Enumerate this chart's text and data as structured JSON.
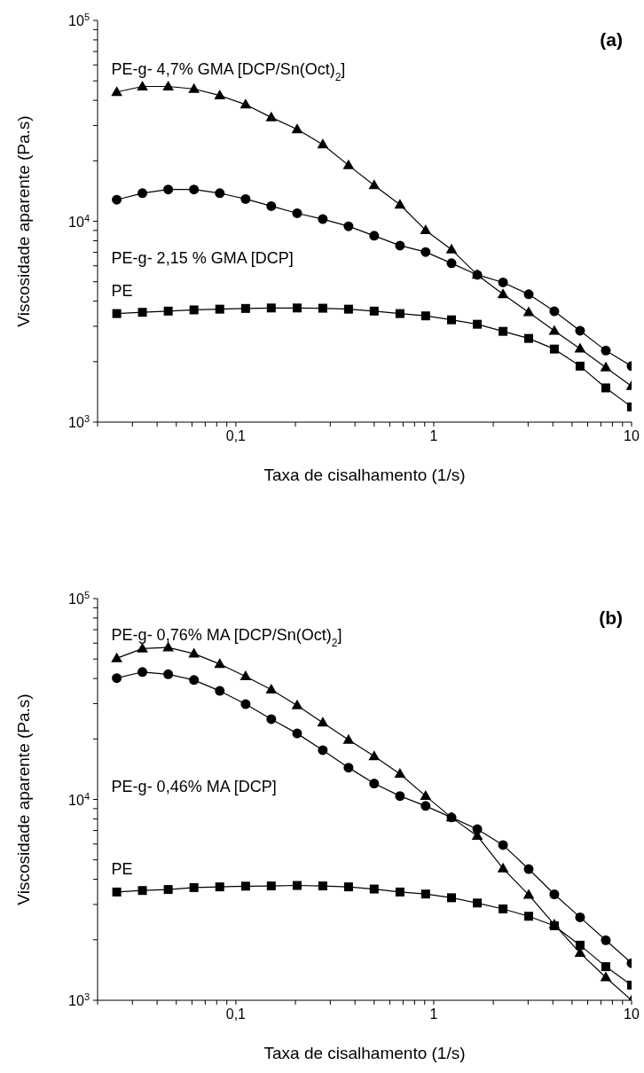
{
  "chart_data": [
    {
      "type": "line",
      "xlabel": "Taxa de cisalhamento (1/s)",
      "ylabel": "Viscosidade aparente (Pa.s)",
      "annotations": [
        "(a)"
      ],
      "log": "xy",
      "line_style": "solid",
      "x": [
        0.025,
        0.0337,
        0.0455,
        0.0614,
        0.0829,
        0.112,
        0.151,
        0.204,
        0.275,
        0.371,
        0.5,
        0.675,
        0.91,
        1.23,
        1.66,
        2.24,
        3.02,
        4.07,
        5.49,
        7.41,
        10
      ],
      "xlim": [
        0.02,
        10
      ],
      "ylim": [
        1000,
        100000
      ],
      "xticks": [
        {
          "value": 0.02,
          "label": null
        },
        {
          "value": 0.03,
          "label": null
        },
        {
          "value": 0.04,
          "label": null
        },
        {
          "value": 0.05,
          "label": null
        },
        {
          "value": 0.06,
          "label": null
        },
        {
          "value": 0.07,
          "label": null
        },
        {
          "value": 0.08,
          "label": null
        },
        {
          "value": 0.09,
          "label": null
        },
        {
          "value": 0.1,
          "label": "0,1"
        },
        {
          "value": 0.2,
          "label": null
        },
        {
          "value": 0.3,
          "label": null
        },
        {
          "value": 0.4,
          "label": null
        },
        {
          "value": 0.5,
          "label": null
        },
        {
          "value": 0.6,
          "label": null
        },
        {
          "value": 0.7,
          "label": null
        },
        {
          "value": 0.8,
          "label": null
        },
        {
          "value": 0.9,
          "label": null
        },
        {
          "value": 1,
          "label": "1"
        },
        {
          "value": 2,
          "label": null
        },
        {
          "value": 3,
          "label": null
        },
        {
          "value": 4,
          "label": null
        },
        {
          "value": 5,
          "label": null
        },
        {
          "value": 6,
          "label": null
        },
        {
          "value": 7,
          "label": null
        },
        {
          "value": 8,
          "label": null
        },
        {
          "value": 9,
          "label": null
        },
        {
          "value": 10,
          "label": "10"
        }
      ],
      "yticks": [
        {
          "value": 1000,
          "label": "10$^{3}$"
        },
        {
          "value": 2000,
          "label": null
        },
        {
          "value": 3000,
          "label": null
        },
        {
          "value": 4000,
          "label": null
        },
        {
          "value": 5000,
          "label": null
        },
        {
          "value": 6000,
          "label": null
        },
        {
          "value": 7000,
          "label": null
        },
        {
          "value": 8000,
          "label": null
        },
        {
          "value": 9000,
          "label": null
        },
        {
          "value": 10000,
          "label": "10$^{4}$"
        },
        {
          "value": 20000,
          "label": null
        },
        {
          "value": 30000,
          "label": null
        },
        {
          "value": 40000,
          "label": null
        },
        {
          "value": 50000,
          "label": null
        },
        {
          "value": 60000,
          "label": null
        },
        {
          "value": 70000,
          "label": null
        },
        {
          "value": 80000,
          "label": null
        },
        {
          "value": 90000,
          "label": null
        },
        {
          "value": 100000,
          "label": "10$^{5}$"
        }
      ],
      "series": [
        {
          "name": "PE-g- 4,7% GMA [DCP/Sn(Oct)$_{2}$]",
          "color": "#000000",
          "marker": "triangle",
          "values": [
            44000,
            46900,
            46900,
            45600,
            42300,
            38100,
            32900,
            28700,
            24100,
            19000,
            15100,
            12100,
            9020,
            7230,
            5410,
            4330,
            3520,
            2850,
            2320,
            1870,
            1510
          ]
        },
        {
          "name": "PE-g- 2,15 % GMA [DCP]",
          "color": "#000000",
          "marker": "circle",
          "values": [
            12800,
            13800,
            14400,
            14400,
            13800,
            12900,
            11900,
            10960,
            10250,
            9440,
            8470,
            7570,
            7030,
            6180,
            5410,
            4960,
            4330,
            3560,
            2850,
            2270,
            1900
          ]
        },
        {
          "name": "PE",
          "color": "#000000",
          "marker": "square",
          "values": [
            3470,
            3520,
            3570,
            3620,
            3650,
            3680,
            3700,
            3700,
            3690,
            3650,
            3570,
            3470,
            3380,
            3230,
            3070,
            2830,
            2610,
            2310,
            1900,
            1480,
            1190
          ]
        }
      ]
    },
    {
      "type": "line",
      "xlabel": "Taxa de cisalhamento (1/s)",
      "ylabel": "Viscosidade aparente (Pa.s)",
      "annotations": [
        "(b)"
      ],
      "log": "xy",
      "line_style": "solid",
      "x": [
        0.025,
        0.0337,
        0.0455,
        0.0614,
        0.0829,
        0.112,
        0.151,
        0.204,
        0.275,
        0.371,
        0.5,
        0.675,
        0.91,
        1.23,
        1.66,
        2.24,
        3.02,
        4.07,
        5.49,
        7.41,
        10
      ],
      "xlim": [
        0.02,
        10
      ],
      "ylim": [
        1000,
        100000
      ],
      "xticks": [
        {
          "value": 0.02,
          "label": null
        },
        {
          "value": 0.03,
          "label": null
        },
        {
          "value": 0.04,
          "label": null
        },
        {
          "value": 0.05,
          "label": null
        },
        {
          "value": 0.06,
          "label": null
        },
        {
          "value": 0.07,
          "label": null
        },
        {
          "value": 0.08,
          "label": null
        },
        {
          "value": 0.09,
          "label": null
        },
        {
          "value": 0.1,
          "label": "0,1"
        },
        {
          "value": 0.2,
          "label": null
        },
        {
          "value": 0.3,
          "label": null
        },
        {
          "value": 0.4,
          "label": null
        },
        {
          "value": 0.5,
          "label": null
        },
        {
          "value": 0.6,
          "label": null
        },
        {
          "value": 0.7,
          "label": null
        },
        {
          "value": 0.8,
          "label": null
        },
        {
          "value": 0.9,
          "label": null
        },
        {
          "value": 1,
          "label": "1"
        },
        {
          "value": 2,
          "label": null
        },
        {
          "value": 3,
          "label": null
        },
        {
          "value": 4,
          "label": null
        },
        {
          "value": 5,
          "label": null
        },
        {
          "value": 6,
          "label": null
        },
        {
          "value": 7,
          "label": null
        },
        {
          "value": 8,
          "label": null
        },
        {
          "value": 9,
          "label": null
        },
        {
          "value": 10,
          "label": "10"
        }
      ],
      "yticks": [
        {
          "value": 1000,
          "label": "10$^{3}$"
        },
        {
          "value": 2000,
          "label": null
        },
        {
          "value": 3000,
          "label": null
        },
        {
          "value": 4000,
          "label": null
        },
        {
          "value": 5000,
          "label": null
        },
        {
          "value": 6000,
          "label": null
        },
        {
          "value": 7000,
          "label": null
        },
        {
          "value": 8000,
          "label": null
        },
        {
          "value": 9000,
          "label": null
        },
        {
          "value": 10000,
          "label": "10$^{4}$"
        },
        {
          "value": 20000,
          "label": null
        },
        {
          "value": 30000,
          "label": null
        },
        {
          "value": 40000,
          "label": null
        },
        {
          "value": 50000,
          "label": null
        },
        {
          "value": 60000,
          "label": null
        },
        {
          "value": 70000,
          "label": null
        },
        {
          "value": 80000,
          "label": null
        },
        {
          "value": 90000,
          "label": null
        },
        {
          "value": 100000,
          "label": "10$^{5}$"
        }
      ],
      "series": [
        {
          "name": "PE-g- 0,76% MA [DCP/Sn(Oct)$_{2}$]",
          "color": "#000000",
          "marker": "triangle",
          "values": [
            50400,
            56400,
            57100,
            53200,
            47200,
            41000,
            35200,
            29400,
            24100,
            19800,
            16400,
            13400,
            10400,
            8130,
            6580,
            4530,
            3350,
            2380,
            1720,
            1300,
            1000
          ]
        },
        {
          "name": "PE-g- 0,46% MA [DCP]",
          "color": "#000000",
          "marker": "circle",
          "values": [
            40200,
            43100,
            42000,
            39300,
            34700,
            29800,
            25100,
            21300,
            17600,
            14400,
            12000,
            10400,
            9280,
            8130,
            7110,
            5930,
            4500,
            3370,
            2590,
            1990,
            1530
          ]
        },
        {
          "name": "PE",
          "color": "#000000",
          "marker": "square",
          "values": [
            3460,
            3520,
            3560,
            3640,
            3670,
            3700,
            3710,
            3730,
            3710,
            3670,
            3580,
            3460,
            3380,
            3240,
            3050,
            2850,
            2620,
            2350,
            1880,
            1470,
            1190
          ]
        }
      ]
    }
  ]
}
